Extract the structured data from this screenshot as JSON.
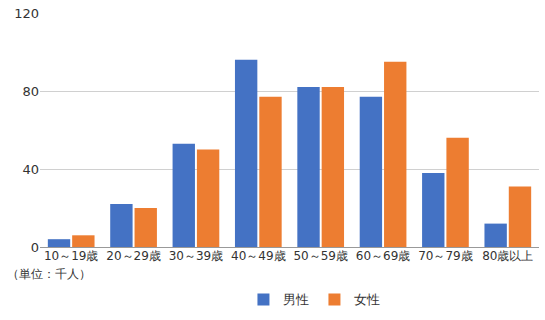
{
  "chart_data": {
    "type": "bar",
    "categories": [
      "10～19歳",
      "20～29歳",
      "30～39歳",
      "40～49歳",
      "50～59歳",
      "60～69歳",
      "70～79歳",
      "80歳以上"
    ],
    "series": [
      {
        "name": "男性",
        "color": "#4472c4",
        "values": [
          4,
          22,
          53,
          96,
          82,
          77,
          38,
          12
        ]
      },
      {
        "name": "女性",
        "color": "#ed7d31",
        "values": [
          6,
          20,
          50,
          77,
          82,
          95,
          56,
          31
        ]
      }
    ],
    "ylim": [
      0,
      120
    ],
    "yticks": [
      0,
      40,
      80,
      120
    ],
    "grid": true,
    "legend": "bottom",
    "annotations": [
      "（単位：千人）"
    ]
  }
}
